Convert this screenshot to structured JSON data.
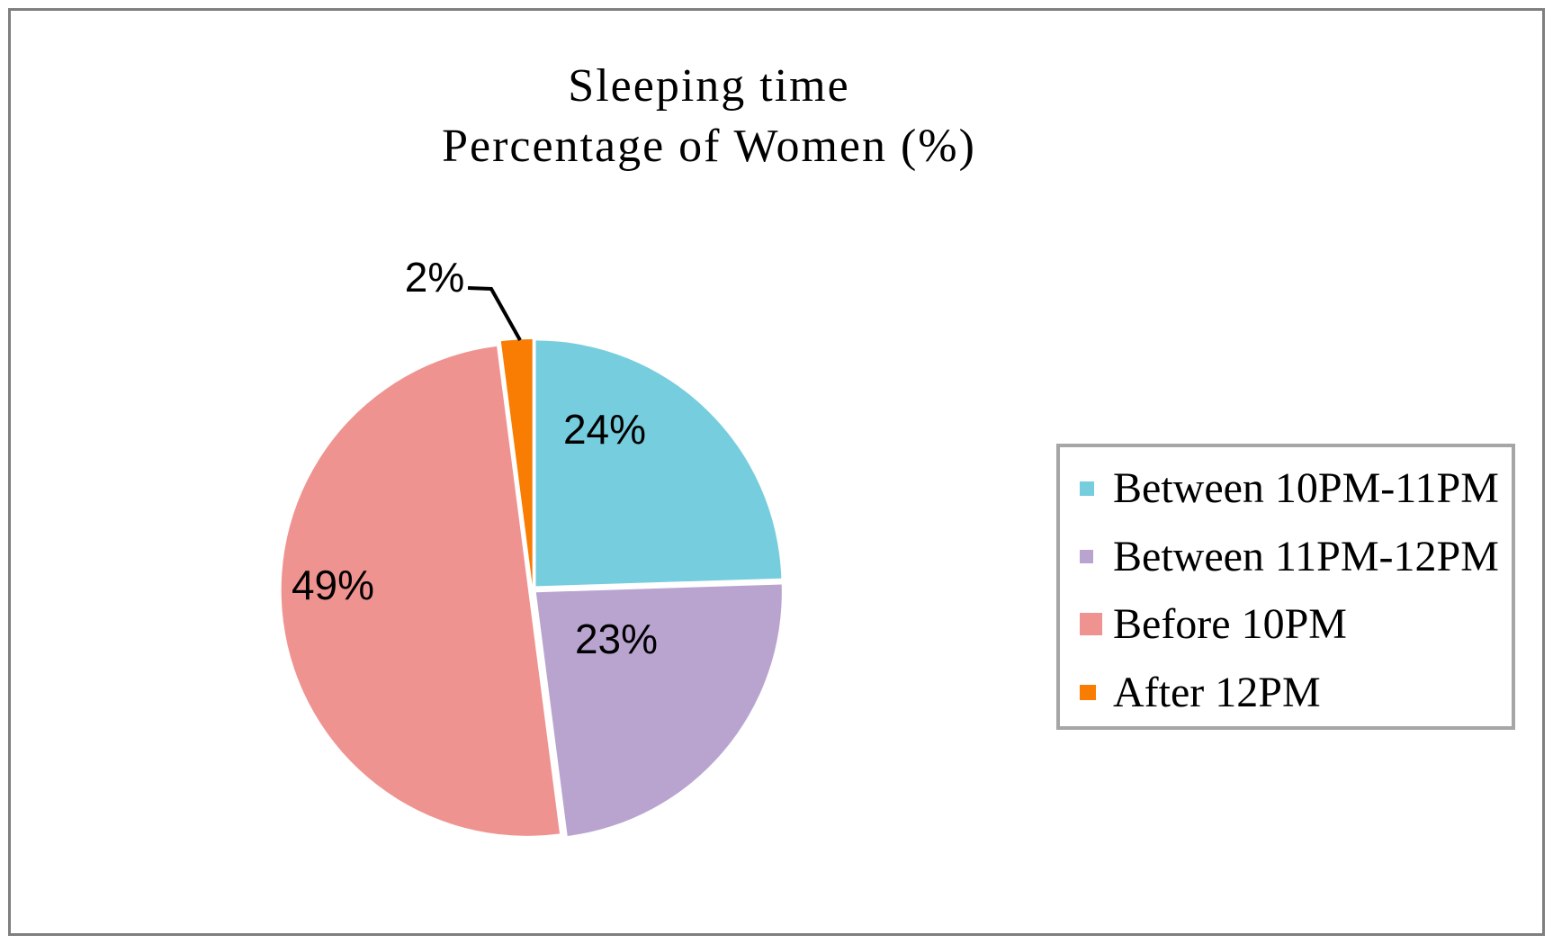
{
  "title": {
    "line1": "Sleeping time",
    "line2": "Percentage of Women (%)"
  },
  "chart_data": {
    "type": "pie",
    "title": "Sleeping time Percentage of Women (%)",
    "legend_position": "right",
    "direction": "clockwise",
    "start_angle_deg": 0,
    "slices": [
      {
        "label": "Between 10PM-11PM",
        "value": 24,
        "display": "24%",
        "color": "#76CDDE"
      },
      {
        "label": "Between 11PM-12PM",
        "value": 23,
        "display": "23%",
        "color": "#B9A4D0"
      },
      {
        "label": "Before 10PM",
        "value": 49,
        "display": "49%",
        "color": "#EF9390"
      },
      {
        "label": "After 12PM",
        "value": 2,
        "display": "2%",
        "color": "#F87D02"
      }
    ],
    "colors": {
      "legend_border": "#A6A6A6",
      "page_border": "#7F7F7F",
      "leader_line": "#000000",
      "label_text": "#000000"
    }
  }
}
